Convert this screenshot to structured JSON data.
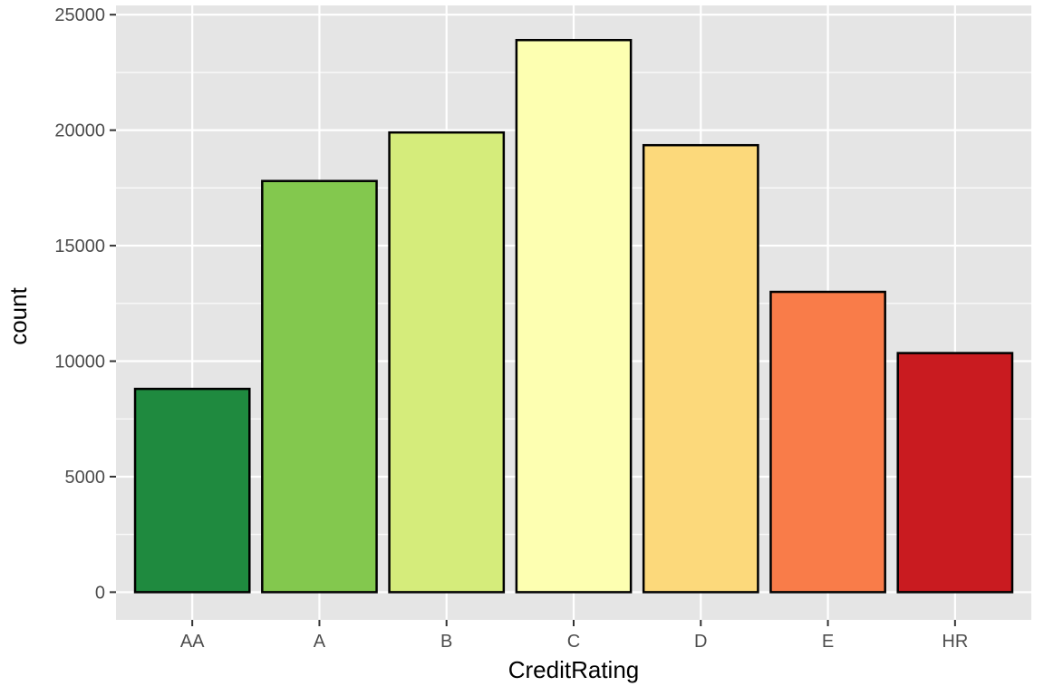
{
  "chart_data": {
    "type": "bar",
    "categories": [
      "AA",
      "A",
      "B",
      "C",
      "D",
      "E",
      "HR"
    ],
    "values": [
      8800,
      17800,
      19900,
      23900,
      19350,
      13000,
      10350
    ],
    "colors": [
      "#1f8a3f",
      "#83c84e",
      "#d5ec7b",
      "#fdffb1",
      "#fcd97b",
      "#f97c49",
      "#c91b20"
    ],
    "bar_outline": "#000000",
    "xlabel": "CreditRating",
    "ylabel": "count",
    "ylim": [
      -1200,
      25400
    ],
    "yticks": [
      0,
      5000,
      10000,
      15000,
      20000,
      25000
    ],
    "ytick_labels": [
      "0",
      "5000",
      "10000",
      "15000",
      "20000",
      "25000"
    ],
    "grid": true,
    "panel_background": "#e5e5e5",
    "grid_color": "#ffffff"
  }
}
